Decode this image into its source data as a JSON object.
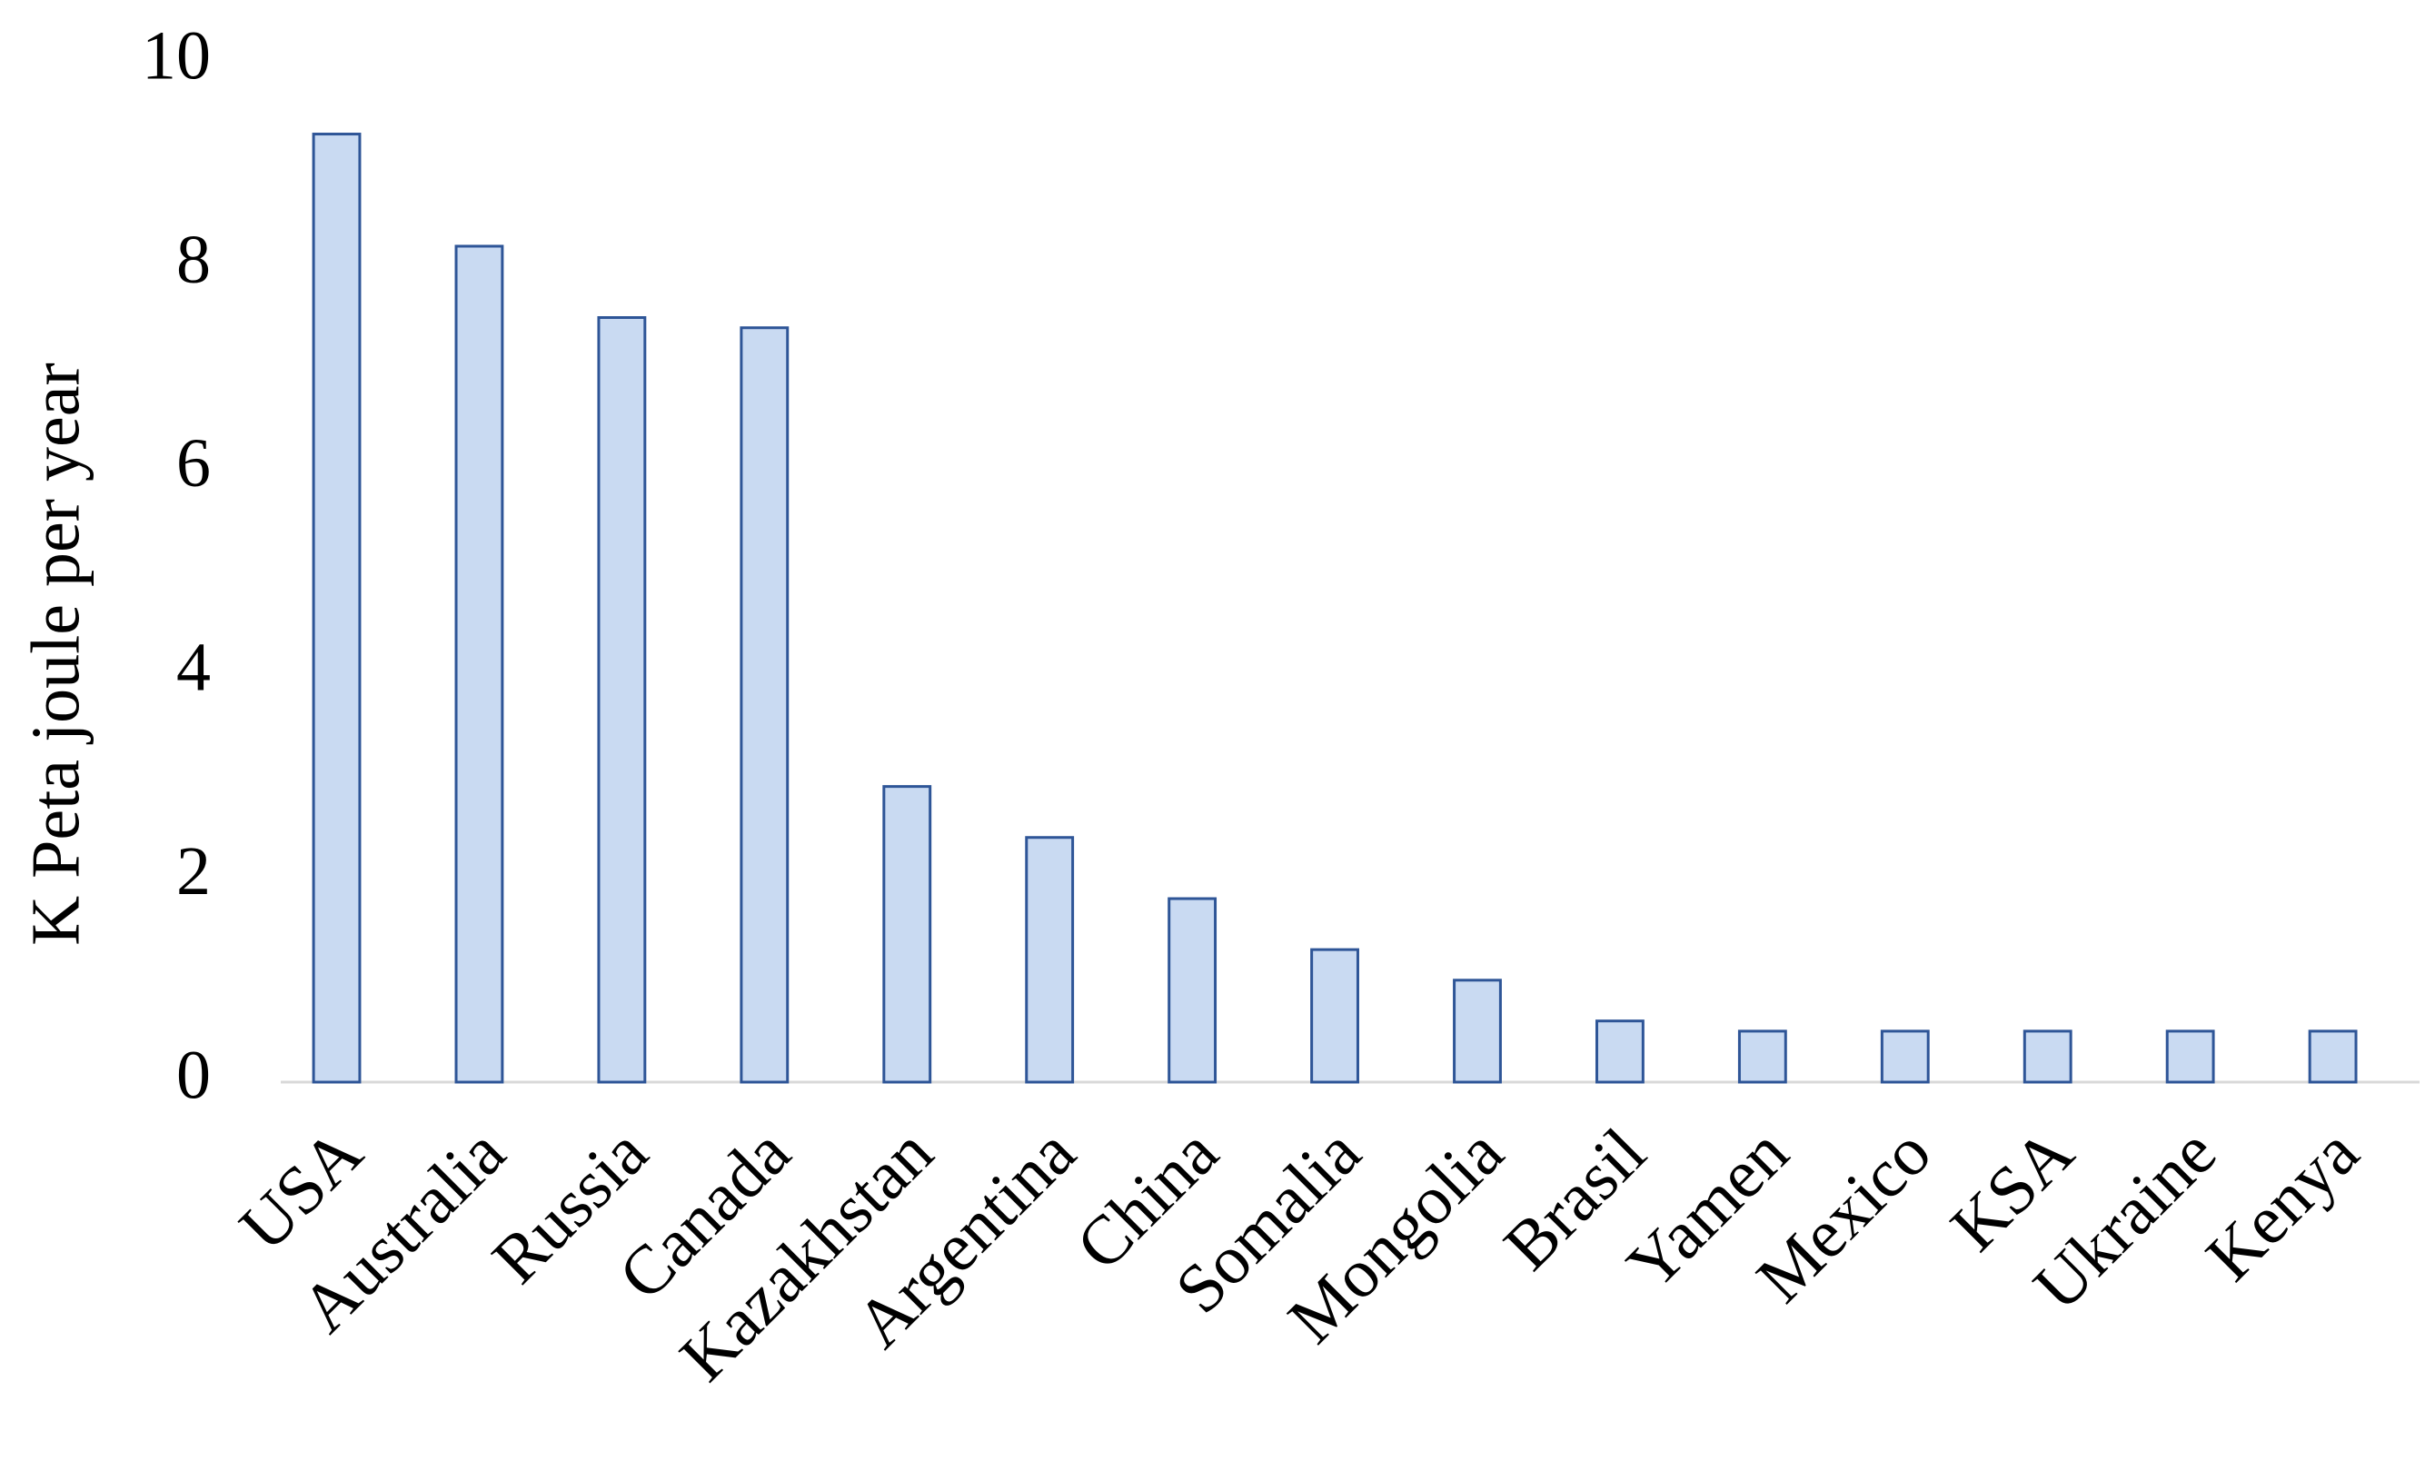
{
  "chart_data": {
    "type": "bar",
    "y_label": "K Peta joule per year",
    "categories": [
      "USA",
      "Australia",
      "Russia",
      "Canada",
      "Kazakhstan",
      "Argentina",
      "China",
      "Somalia",
      "Mongolia",
      "Brasil",
      "Yamen",
      "Mexico",
      "KSA",
      "Ukraine",
      "Kenya"
    ],
    "values": [
      9.3,
      8.2,
      7.5,
      7.4,
      2.9,
      2.4,
      1.8,
      1.3,
      1.0,
      0.6,
      0.5,
      0.5,
      0.5,
      0.5,
      0.5
    ],
    "color": "#c9daf2",
    "edge_color": "#2e5597",
    "ylim": [
      0,
      10
    ],
    "yticks": [
      0,
      2,
      4,
      6,
      8,
      10
    ],
    "grid": false
  }
}
